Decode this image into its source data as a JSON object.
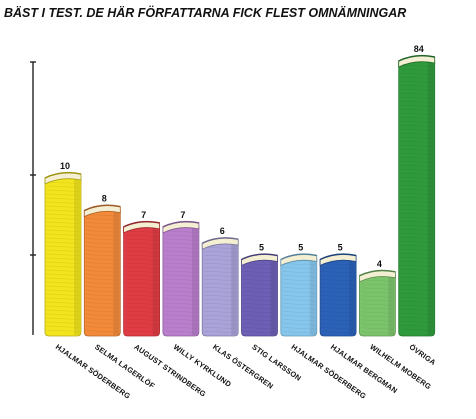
{
  "title": "BÄST I TEST. DE HÄR FÖRFATTARNA FICK FLEST OMNÄMNINGAR",
  "chart_data": {
    "type": "bar",
    "title": "BÄST I TEST. DE HÄR FÖRFATTARNA FICK FLEST OMNÄMNINGAR",
    "xlabel": "",
    "ylabel": "",
    "categories": [
      "HJALMAR SÖDERBERG",
      "SELMA LAGERLÖF",
      "AUGUST STRINDBERG",
      "WILLY KYRKLUND",
      "KLAS ÖSTERGREN",
      "STIG LARSSON",
      "HJALMAR SÖDERBERG",
      "HJALMAR BERGMAN",
      "WILHELM MOBERG",
      "ÖVRIGA"
    ],
    "values": [
      10,
      8,
      7,
      7,
      6,
      5,
      5,
      5,
      4,
      84
    ],
    "value_labels": [
      "10",
      "8",
      "7",
      "7",
      "6",
      "5",
      "5",
      "5",
      "4",
      "84"
    ],
    "colors": [
      "#f2e41d",
      "#f28a3a",
      "#e03c44",
      "#b97fcc",
      "#a9a3d9",
      "#6c5fb5",
      "#86c6ec",
      "#2b62b8",
      "#7cc46c",
      "#2f9a3c"
    ],
    "bar_style": "hand-drawn books",
    "grid": false,
    "legend": "none",
    "axis_break": "visual scale not linear; tall final bar"
  }
}
